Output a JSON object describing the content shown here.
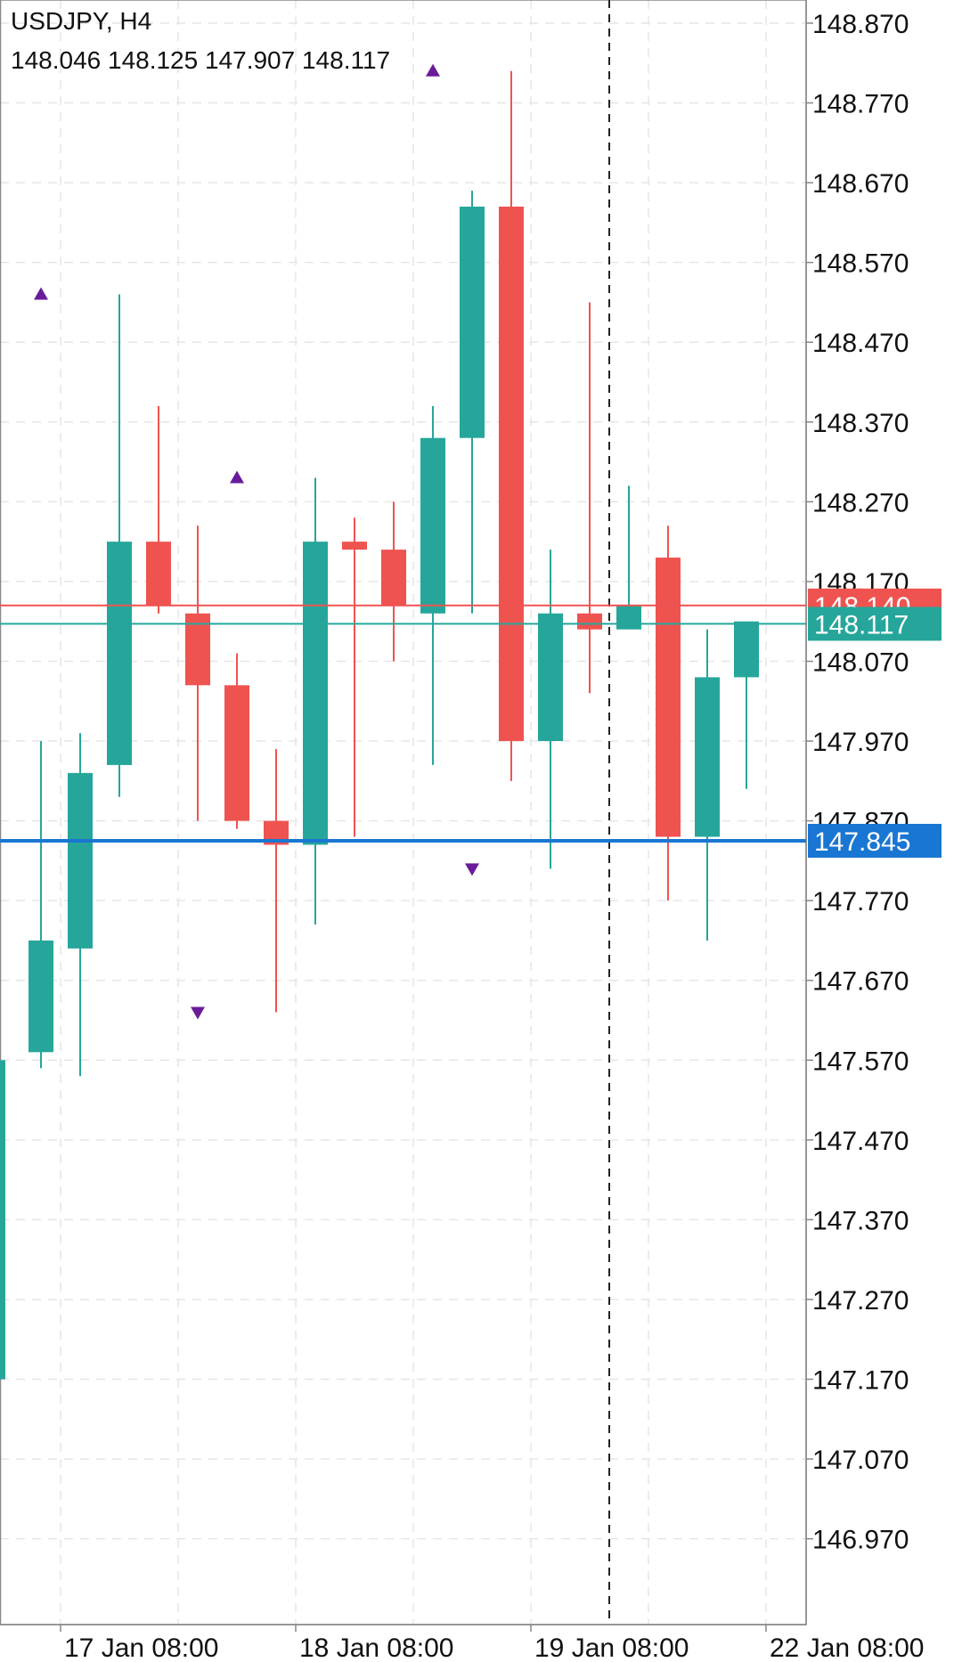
{
  "header": {
    "symbol": "USDJPY, H4",
    "ohlc": "148.046 148.125 147.907 148.117"
  },
  "colors": {
    "bull": "#26a69a",
    "bear": "#ef5350",
    "marker": "#6a1b9a",
    "bid_line": "#26a69a",
    "ask_line": "#ef5350",
    "level_line": "#1976d2",
    "grid": "#e6e6e6"
  },
  "chart_data": {
    "type": "candlestick",
    "symbol": "USDJPY",
    "timeframe": "H4",
    "ylim": [
      146.9,
      148.9
    ],
    "y_ticks": [
      "148.870",
      "148.770",
      "148.670",
      "148.570",
      "148.470",
      "148.370",
      "148.270",
      "148.170",
      "148.070",
      "147.970",
      "147.870",
      "147.770",
      "147.670",
      "147.570",
      "147.470",
      "147.370",
      "147.270",
      "147.170",
      "147.070",
      "146.970"
    ],
    "x_ticks": [
      "17 Jan 08:00",
      "18 Jan 08:00",
      "19 Jan 08:00",
      "22 Jan 08:00"
    ],
    "x_tick_candle_index": [
      2.5,
      8.5,
      14.5,
      20.5
    ],
    "candles": [
      {
        "open": 147.58,
        "high": 147.97,
        "low": 147.56,
        "close": 147.72
      },
      {
        "open": 147.71,
        "high": 147.98,
        "low": 147.55,
        "close": 147.93
      },
      {
        "open": 147.94,
        "high": 148.53,
        "low": 147.9,
        "close": 148.22
      },
      {
        "open": 148.22,
        "high": 148.39,
        "low": 148.13,
        "close": 148.14
      },
      {
        "open": 148.13,
        "high": 148.24,
        "low": 147.87,
        "close": 148.04
      },
      {
        "open": 148.04,
        "high": 148.08,
        "low": 147.86,
        "close": 147.87
      },
      {
        "open": 147.87,
        "high": 147.96,
        "low": 147.63,
        "close": 147.84
      },
      {
        "open": 147.84,
        "high": 148.3,
        "low": 147.74,
        "close": 148.22
      },
      {
        "open": 148.22,
        "high": 148.25,
        "low": 147.85,
        "close": 148.21
      },
      {
        "open": 148.21,
        "high": 148.27,
        "low": 148.07,
        "close": 148.14
      },
      {
        "open": 148.13,
        "high": 148.39,
        "low": 147.94,
        "close": 148.35
      },
      {
        "open": 148.35,
        "high": 148.66,
        "low": 148.13,
        "close": 148.64
      },
      {
        "open": 148.64,
        "high": 148.81,
        "low": 147.92,
        "close": 147.97
      },
      {
        "open": 147.97,
        "high": 148.21,
        "low": 147.81,
        "close": 148.13
      },
      {
        "open": 148.13,
        "high": 148.52,
        "low": 148.03,
        "close": 148.11
      },
      {
        "open": 148.11,
        "high": 148.29,
        "low": 148.11,
        "close": 148.14
      },
      {
        "open": 148.2,
        "high": 148.24,
        "low": 147.77,
        "close": 147.85
      },
      {
        "open": 147.85,
        "high": 148.11,
        "low": 147.72,
        "close": 148.05
      },
      {
        "open": 148.05,
        "high": 148.12,
        "low": 147.91,
        "close": 148.12
      }
    ],
    "first_candle_index": 2,
    "partial_candle": {
      "index": 1,
      "open": 147.17,
      "close": 147.57
    },
    "markers": [
      {
        "candle": 2,
        "type": "up",
        "price": 148.53
      },
      {
        "candle": 7,
        "type": "up",
        "price": 148.3
      },
      {
        "candle": 12,
        "type": "up",
        "price": 148.81
      },
      {
        "candle": 6,
        "type": "down",
        "price": 147.63
      },
      {
        "candle": 13,
        "type": "down",
        "price": 147.81
      }
    ],
    "price_lines": [
      {
        "name": "ask",
        "price": 148.14,
        "label": "148.140"
      },
      {
        "name": "bid",
        "price": 148.117,
        "label": "148.117"
      },
      {
        "name": "level",
        "price": 147.845,
        "label": "147.845"
      }
    ],
    "period_separator_candle": 16.5,
    "grid": true
  }
}
